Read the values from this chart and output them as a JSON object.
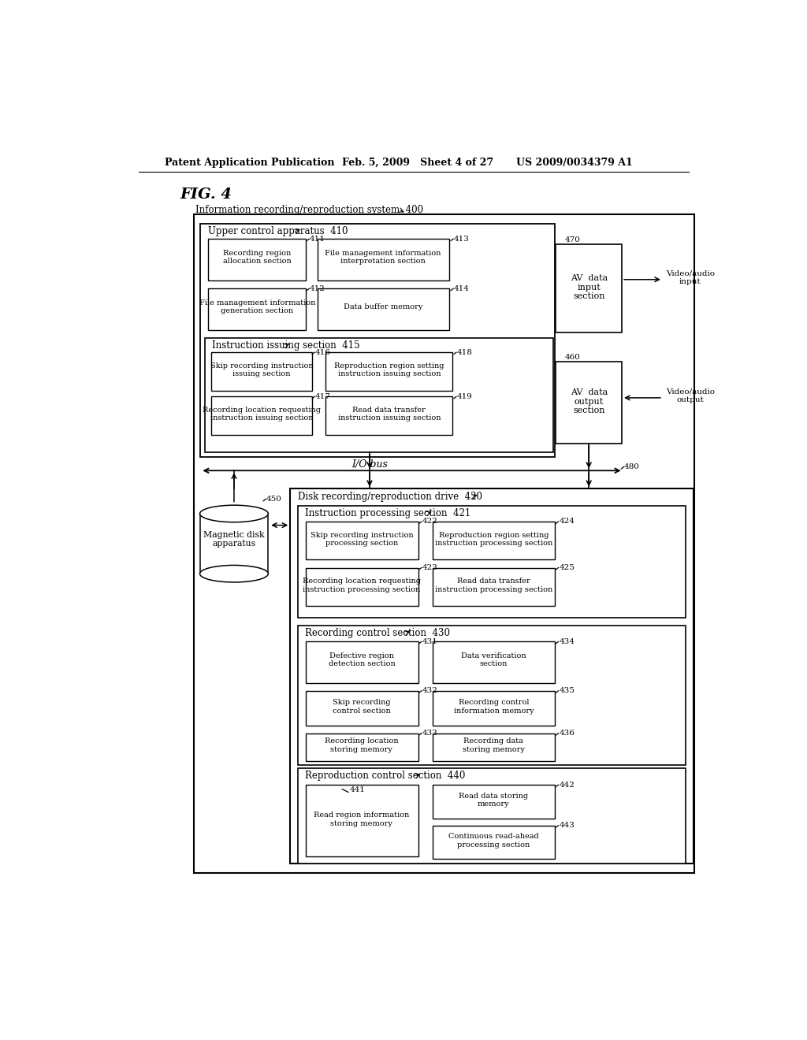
{
  "header_left": "Patent Application Publication",
  "header_middle": "Feb. 5, 2009   Sheet 4 of 27",
  "header_right": "US 2009/0034379 A1",
  "fig_title": "FIG. 4",
  "system_label": "Information recording/reproduction system  400"
}
